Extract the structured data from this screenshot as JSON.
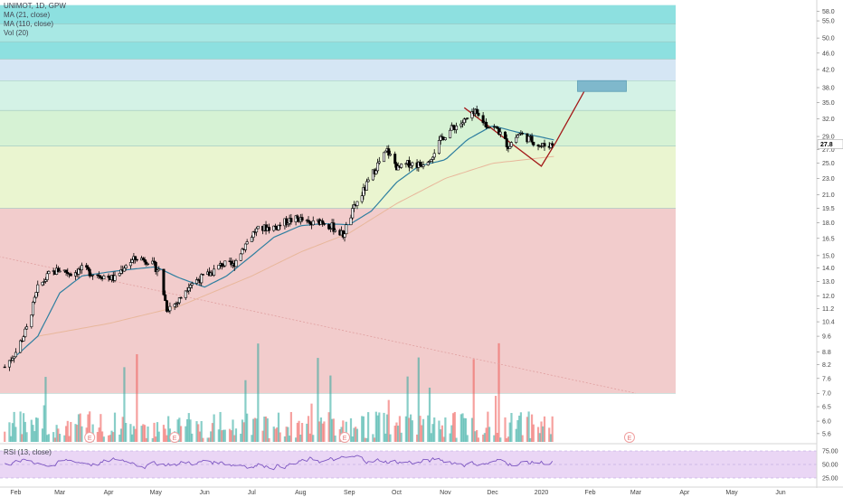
{
  "legend": {
    "symbol": "UNIMOT, 1D, GPW",
    "ma21": "MA (21, close)",
    "ma110": "MA (110, close)",
    "vol": "Vol (20)"
  },
  "rsi_label": "RSI (13, close)",
  "colors": {
    "up": "#26a69a",
    "down": "#ef5350",
    "candle": "#000000",
    "ma21": "#2f7fa0",
    "ma110": "#e8b79b",
    "trend_line": "#e0a0a0",
    "pattern": "#a31919",
    "target_box": "#7fb8cc",
    "rsi_line": "#7e57c2",
    "rsi_band": "#ead6f5",
    "zone_red": "#f2cccc",
    "zone_yellow": "#eaf5d0",
    "zone_green": "#d6f2d4",
    "zone_lightgreen": "#d4f2e6",
    "zone_lightblue": "#d5e6f4",
    "zone_cyan": "#8de0e0",
    "zone_cyan_light": "#a8e8e4"
  },
  "chart_data": {
    "type": "candlestick",
    "y_scale": "log",
    "price_ticks": [
      "58.0",
      "55.0",
      "50.0",
      "46.0",
      "42.0",
      "38.0",
      "35.0",
      "32.0",
      "29.0",
      "27.0",
      "25.0",
      "23.0",
      "21.0",
      "19.5",
      "18.0",
      "16.5",
      "15.0",
      "14.0",
      "13.0",
      "12.0",
      "11.2",
      "10.4",
      "9.6",
      "8.8",
      "8.2",
      "7.6",
      "7.0",
      "6.5",
      "6.0",
      "5.6"
    ],
    "last_price": "27.8",
    "rsi_ticks": [
      "75.00",
      "50.00",
      "25.00"
    ],
    "x_labels": [
      "Feb",
      "Mar",
      "Apr",
      "May",
      "Jun",
      "Jul",
      "Aug",
      "Sep",
      "Oct",
      "Nov",
      "Dec",
      "2020",
      "Feb",
      "Mar",
      "Apr",
      "May",
      "Jun"
    ],
    "earnings_markers": [
      "E",
      "E",
      "E",
      "E"
    ],
    "zones": [
      {
        "from": 7.0,
        "to": 19.5,
        "color": "zone_red"
      },
      {
        "from": 19.5,
        "to": 27.5,
        "color": "zone_yellow"
      },
      {
        "from": 27.5,
        "to": 33.5,
        "color": "zone_green"
      },
      {
        "from": 33.5,
        "to": 39.5,
        "color": "zone_lightgreen"
      },
      {
        "from": 39.5,
        "to": 44.5,
        "color": "zone_lightblue"
      },
      {
        "from": 44.5,
        "to": 49.0,
        "color": "zone_cyan"
      },
      {
        "from": 49.0,
        "to": 54.0,
        "color": "zone_cyan_light"
      },
      {
        "from": 54.0,
        "to": 60.0,
        "color": "zone_cyan"
      }
    ],
    "price_path": [
      [
        "2019-01-25",
        8.1
      ],
      [
        "2019-02-01",
        8.8
      ],
      [
        "2019-02-08",
        10.0
      ],
      [
        "2019-02-15",
        12.5
      ],
      [
        "2019-02-22",
        13.5
      ],
      [
        "2019-03-01",
        13.9
      ],
      [
        "2019-03-08",
        13.6
      ],
      [
        "2019-03-15",
        13.9
      ],
      [
        "2019-03-22",
        13.6
      ],
      [
        "2019-03-29",
        13.4
      ],
      [
        "2019-04-05",
        13.2
      ],
      [
        "2019-04-12",
        14.3
      ],
      [
        "2019-04-19",
        14.8
      ],
      [
        "2019-04-26",
        14.6
      ],
      [
        "2019-05-03",
        13.8
      ],
      [
        "2019-05-08",
        11.2
      ],
      [
        "2019-05-15",
        11.6
      ],
      [
        "2019-05-22",
        12.8
      ],
      [
        "2019-05-29",
        13.2
      ],
      [
        "2019-06-05",
        13.6
      ],
      [
        "2019-06-12",
        14.3
      ],
      [
        "2019-06-19",
        14.2
      ],
      [
        "2019-06-26",
        15.8
      ],
      [
        "2019-07-03",
        17.2
      ],
      [
        "2019-07-10",
        17.5
      ],
      [
        "2019-07-17",
        17.6
      ],
      [
        "2019-07-24",
        18.2
      ],
      [
        "2019-07-31",
        18.4
      ],
      [
        "2019-08-07",
        17.8
      ],
      [
        "2019-08-14",
        18.2
      ],
      [
        "2019-08-21",
        17.6
      ],
      [
        "2019-08-28",
        16.8
      ],
      [
        "2019-09-04",
        19.5
      ],
      [
        "2019-09-11",
        21.8
      ],
      [
        "2019-09-18",
        24.5
      ],
      [
        "2019-09-25",
        26.8
      ],
      [
        "2019-10-02",
        24.2
      ],
      [
        "2019-10-09",
        25.0
      ],
      [
        "2019-10-16",
        24.8
      ],
      [
        "2019-10-23",
        26.0
      ],
      [
        "2019-10-30",
        28.8
      ],
      [
        "2019-11-06",
        30.5
      ],
      [
        "2019-11-13",
        31.5
      ],
      [
        "2019-11-20",
        33.0
      ],
      [
        "2019-11-27",
        31.0
      ],
      [
        "2019-12-04",
        30.2
      ],
      [
        "2019-12-11",
        27.5
      ],
      [
        "2019-12-18",
        29.5
      ],
      [
        "2019-12-25",
        28.5
      ],
      [
        "2020-01-01",
        27.5
      ],
      [
        "2020-01-08",
        27.8
      ]
    ],
    "ma21_path": [
      [
        "2019-02-01",
        8.6
      ],
      [
        "2019-02-15",
        9.6
      ],
      [
        "2019-03-01",
        12.2
      ],
      [
        "2019-03-15",
        13.4
      ],
      [
        "2019-04-01",
        13.7
      ],
      [
        "2019-04-15",
        13.9
      ],
      [
        "2019-05-01",
        14.1
      ],
      [
        "2019-05-15",
        13.3
      ],
      [
        "2019-06-01",
        12.6
      ],
      [
        "2019-06-15",
        13.4
      ],
      [
        "2019-07-01",
        15.0
      ],
      [
        "2019-07-15",
        16.6
      ],
      [
        "2019-08-01",
        17.7
      ],
      [
        "2019-08-15",
        17.9
      ],
      [
        "2019-09-01",
        17.8
      ],
      [
        "2019-09-15",
        19.2
      ],
      [
        "2019-10-01",
        22.5
      ],
      [
        "2019-10-15",
        24.6
      ],
      [
        "2019-11-01",
        25.5
      ],
      [
        "2019-11-15",
        28.5
      ],
      [
        "2019-12-01",
        30.8
      ],
      [
        "2019-12-15",
        29.8
      ],
      [
        "2020-01-01",
        28.9
      ],
      [
        "2020-01-10",
        28.4
      ]
    ],
    "ma110_path": [
      [
        "2019-02-15",
        9.6
      ],
      [
        "2019-04-01",
        10.3
      ],
      [
        "2019-05-15",
        11.3
      ],
      [
        "2019-07-01",
        13.4
      ],
      [
        "2019-08-01",
        15.3
      ],
      [
        "2019-09-01",
        17.0
      ],
      [
        "2019-10-01",
        20.0
      ],
      [
        "2019-11-01",
        23.0
      ],
      [
        "2019-12-01",
        25.0
      ],
      [
        "2020-01-10",
        26.0
      ]
    ],
    "pattern_path": [
      [
        "2019-11-13",
        34.0
      ],
      [
        "2020-01-01",
        24.6
      ],
      [
        "2020-01-10",
        28.0
      ],
      [
        "2020-02-01",
        39.5
      ]
    ],
    "target_box": {
      "from_date": "2020-01-24",
      "to_date": "2020-02-24",
      "low": 37.2,
      "high": 39.5
    },
    "trend_line": [
      [
        "2019-01-01",
        15.5
      ],
      [
        "2020-03-01",
        7.0
      ]
    ]
  }
}
